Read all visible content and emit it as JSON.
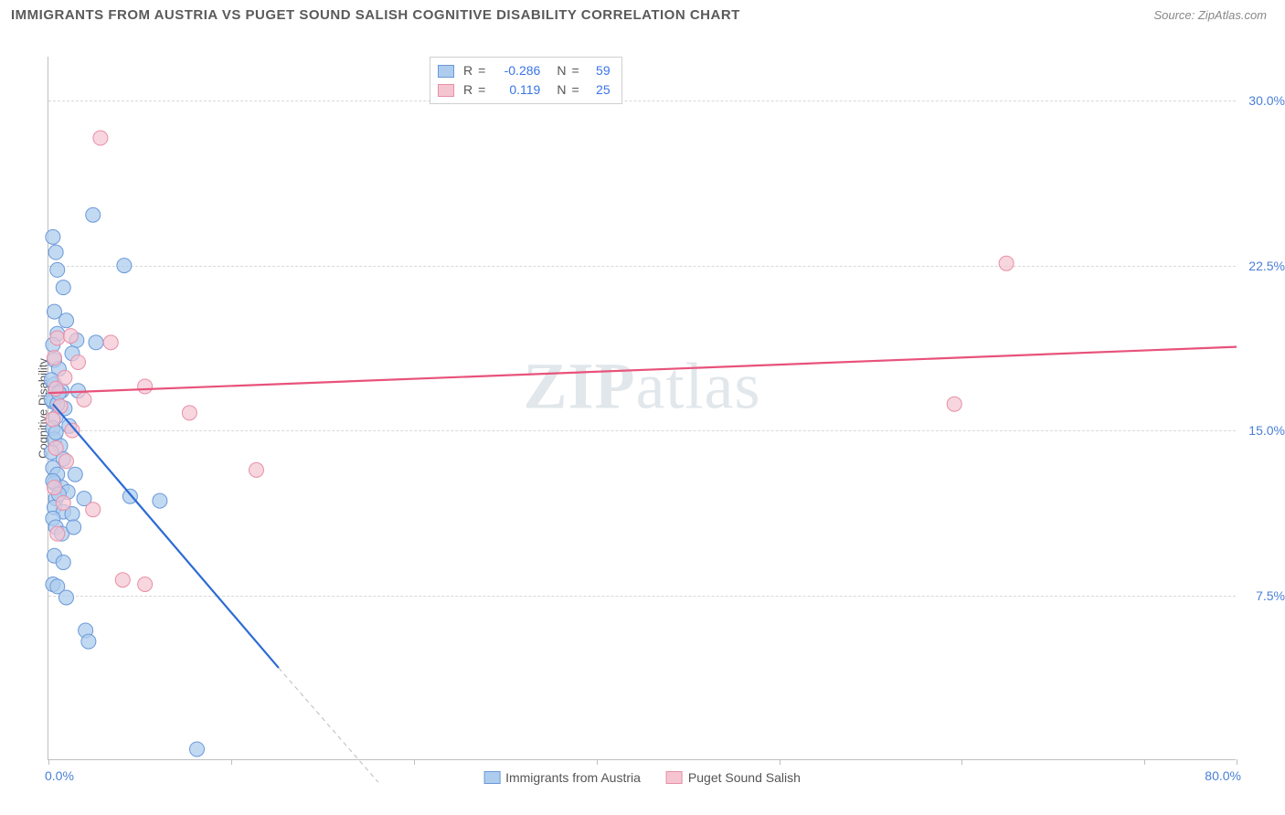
{
  "header": {
    "title": "IMMIGRANTS FROM AUSTRIA VS PUGET SOUND SALISH COGNITIVE DISABILITY CORRELATION CHART",
    "source": "Source: ZipAtlas.com"
  },
  "chart": {
    "type": "scatter",
    "ylabel": "Cognitive Disability",
    "watermark": "ZIPatlas",
    "background_color": "#ffffff",
    "grid_color": "#d8d8d8",
    "axis_color": "#bfbfbf",
    "tick_label_color": "#4a7fd6",
    "xlim": [
      0,
      80
    ],
    "ylim": [
      0,
      32
    ],
    "xtick_marks": [
      0,
      12.3,
      24.6,
      36.9,
      49.2,
      61.5,
      73.8,
      80
    ],
    "xtick_labels": {
      "min": "0.0%",
      "max": "80.0%"
    },
    "ytick_values": [
      7.5,
      15.0,
      22.5,
      30.0
    ],
    "ytick_labels": [
      "7.5%",
      "15.0%",
      "22.5%",
      "30.0%"
    ],
    "series": [
      {
        "name": "Immigrants from Austria",
        "fill": "#aeccee",
        "stroke": "#6a99d8",
        "line_color": "#2d6bd4",
        "marker_radius": 8,
        "marker_opacity": 0.75,
        "R": "-0.286",
        "N": "59",
        "trend": {
          "x1": 0.3,
          "y1": 16.2,
          "x2": 15.5,
          "y2": 4.2,
          "dash_ext_x": 22.2,
          "dash_ext_y": -1.0
        },
        "points": [
          [
            0.3,
            23.8
          ],
          [
            0.5,
            23.1
          ],
          [
            0.6,
            22.3
          ],
          [
            1.0,
            21.5
          ],
          [
            5.1,
            22.5
          ],
          [
            3.0,
            24.8
          ],
          [
            0.4,
            20.4
          ],
          [
            1.2,
            20.0
          ],
          [
            0.6,
            19.4
          ],
          [
            0.3,
            18.9
          ],
          [
            1.9,
            19.1
          ],
          [
            3.2,
            19.0
          ],
          [
            0.4,
            18.2
          ],
          [
            0.7,
            17.8
          ],
          [
            1.6,
            18.5
          ],
          [
            0.4,
            17.1
          ],
          [
            0.9,
            16.8
          ],
          [
            0.2,
            17.3
          ],
          [
            0.3,
            16.3
          ],
          [
            1.1,
            16.0
          ],
          [
            2.0,
            16.8
          ],
          [
            0.5,
            15.6
          ],
          [
            0.3,
            15.1
          ],
          [
            1.4,
            15.2
          ],
          [
            0.2,
            16.4
          ],
          [
            0.6,
            16.2
          ],
          [
            0.4,
            14.6
          ],
          [
            0.8,
            14.3
          ],
          [
            0.2,
            14.0
          ],
          [
            1.0,
            13.7
          ],
          [
            0.3,
            13.3
          ],
          [
            0.6,
            13.0
          ],
          [
            1.8,
            13.0
          ],
          [
            0.4,
            12.6
          ],
          [
            0.9,
            12.4
          ],
          [
            0.3,
            12.7
          ],
          [
            1.3,
            12.2
          ],
          [
            0.5,
            11.9
          ],
          [
            2.4,
            11.9
          ],
          [
            0.4,
            11.5
          ],
          [
            1.0,
            11.3
          ],
          [
            1.6,
            11.2
          ],
          [
            0.7,
            12.1
          ],
          [
            0.3,
            11.0
          ],
          [
            5.5,
            12.0
          ],
          [
            7.5,
            11.8
          ],
          [
            0.5,
            10.6
          ],
          [
            0.9,
            10.3
          ],
          [
            1.7,
            10.6
          ],
          [
            0.4,
            9.3
          ],
          [
            1.0,
            9.0
          ],
          [
            0.3,
            8.0
          ],
          [
            0.6,
            7.9
          ],
          [
            1.2,
            7.4
          ],
          [
            2.5,
            5.9
          ],
          [
            2.7,
            5.4
          ],
          [
            0.7,
            16.7
          ],
          [
            0.5,
            14.9
          ],
          [
            10.0,
            0.5
          ]
        ]
      },
      {
        "name": "Puget Sound Salish",
        "fill": "#f4c5d1",
        "stroke": "#e88fa8",
        "line_color": "#e8527b",
        "marker_radius": 8,
        "marker_opacity": 0.7,
        "R": "0.119",
        "N": "25",
        "trend": {
          "x1": 0,
          "y1": 16.7,
          "x2": 80,
          "y2": 18.8
        },
        "points": [
          [
            3.5,
            28.3
          ],
          [
            64.5,
            22.6
          ],
          [
            61.0,
            16.2
          ],
          [
            0.6,
            19.2
          ],
          [
            1.5,
            19.3
          ],
          [
            4.2,
            19.0
          ],
          [
            0.4,
            18.3
          ],
          [
            2.0,
            18.1
          ],
          [
            1.1,
            17.4
          ],
          [
            0.5,
            16.9
          ],
          [
            6.5,
            17.0
          ],
          [
            0.8,
            16.1
          ],
          [
            2.4,
            16.4
          ],
          [
            0.3,
            15.5
          ],
          [
            1.6,
            15.0
          ],
          [
            9.5,
            15.8
          ],
          [
            0.5,
            14.2
          ],
          [
            1.2,
            13.6
          ],
          [
            14.0,
            13.2
          ],
          [
            0.4,
            12.4
          ],
          [
            1.0,
            11.7
          ],
          [
            3.0,
            11.4
          ],
          [
            0.6,
            10.3
          ],
          [
            5.0,
            8.2
          ],
          [
            6.5,
            8.0
          ]
        ]
      }
    ],
    "legend_bottom": [
      {
        "swatch_fill": "#aeccee",
        "swatch_stroke": "#6a99d8",
        "label": "Immigrants from Austria"
      },
      {
        "swatch_fill": "#f4c5d1",
        "swatch_stroke": "#e88fa8",
        "label": "Puget Sound Salish"
      }
    ],
    "stats_box": {
      "rows": [
        {
          "swatch_fill": "#aeccee",
          "swatch_stroke": "#6a99d8",
          "R": "-0.286",
          "N": "59"
        },
        {
          "swatch_fill": "#f4c5d1",
          "swatch_stroke": "#e88fa8",
          "R": "0.119",
          "N": "25"
        }
      ]
    }
  }
}
